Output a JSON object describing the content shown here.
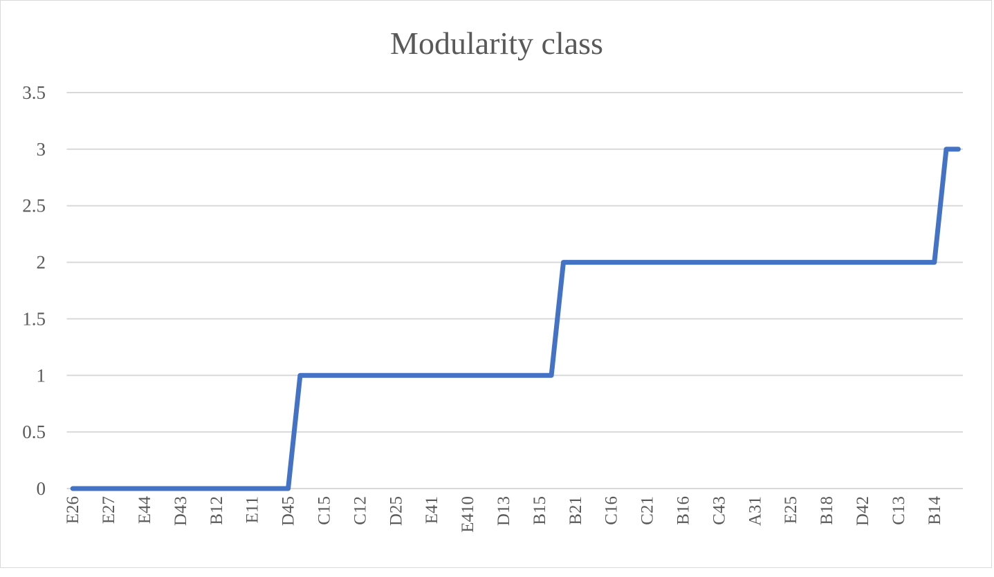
{
  "chart_data": {
    "type": "line",
    "title": "Modularity class",
    "xlabel": "",
    "ylabel": "",
    "ylim": [
      0,
      3.5
    ],
    "yticks": [
      0,
      0.5,
      1,
      1.5,
      2,
      2.5,
      3,
      3.5
    ],
    "ytick_labels": [
      "0",
      "0.5",
      "1",
      "1.5",
      "2",
      "2.5",
      "3",
      "3.5"
    ],
    "grid": true,
    "legend": "none",
    "line_color": "#4472C4",
    "categories": [
      "E26",
      "",
      "",
      "E27",
      "",
      "",
      "E44",
      "",
      "",
      "D43",
      "",
      "",
      "B12",
      "",
      "",
      "E11",
      "",
      "",
      "D45",
      "",
      "",
      "C15",
      "",
      "",
      "C12",
      "",
      "",
      "D25",
      "",
      "",
      "E41",
      "",
      "",
      "E410",
      "",
      "",
      "D13",
      "",
      "",
      "B15",
      "",
      "",
      "B21",
      "",
      "",
      "C16",
      "",
      "",
      "C21",
      "",
      "",
      "B16",
      "",
      "",
      "C43",
      "",
      "",
      "A31",
      "",
      "",
      "E25",
      "",
      "",
      "B18",
      "",
      "",
      "D42",
      "",
      "",
      "C13",
      "",
      "",
      "B14",
      "",
      ""
    ],
    "values": [
      0,
      0,
      0,
      0,
      0,
      0,
      0,
      0,
      0,
      0,
      0,
      0,
      0,
      0,
      0,
      0,
      0,
      0,
      0,
      1,
      1,
      1,
      1,
      1,
      1,
      1,
      1,
      1,
      1,
      1,
      1,
      1,
      1,
      1,
      1,
      1,
      1,
      1,
      1,
      1,
      1,
      2,
      2,
      2,
      2,
      2,
      2,
      2,
      2,
      2,
      2,
      2,
      2,
      2,
      2,
      2,
      2,
      2,
      2,
      2,
      2,
      2,
      2,
      2,
      2,
      2,
      2,
      2,
      2,
      2,
      2,
      2,
      2,
      3,
      3
    ]
  }
}
